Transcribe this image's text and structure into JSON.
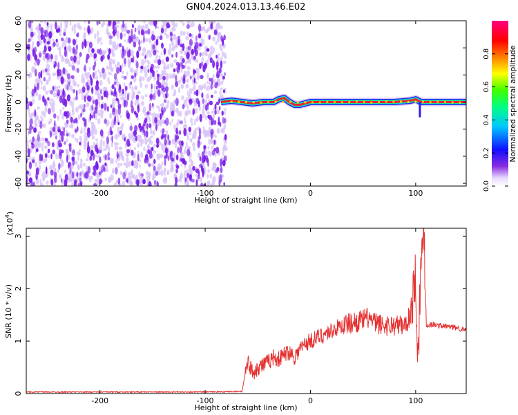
{
  "figure_title": "GN04.2024.013.13.46.E02",
  "colors": {
    "snr_line": "#e53030",
    "ridge_core": "#e8233a",
    "noise_purple": "#7a1ee8",
    "noise_light": "#d8c4f8",
    "frame": "#000000"
  },
  "chart_data": [
    {
      "type": "heatmap",
      "xlabel": "Height of straight line (km)",
      "ylabel": "Frequency (Hz)",
      "xlim": [
        -270,
        148
      ],
      "ylim": [
        -62,
        60
      ],
      "x_ticks": [
        -200,
        -100,
        0,
        100
      ],
      "x_tick_labels": [
        "-200",
        "-100",
        "0",
        "100"
      ],
      "y_ticks": [
        -60,
        -40,
        -20,
        0,
        20,
        40,
        60
      ],
      "y_tick_labels": [
        "-60",
        "-40",
        "-20",
        "0",
        "20",
        "40",
        "60"
      ],
      "grid": false,
      "noise_region_x": [
        -270,
        -80
      ],
      "ridge_frequency_hz": 0,
      "ridge": {
        "x": [
          -85,
          -75,
          -65,
          -55,
          -45,
          -35,
          -30,
          -25,
          -20,
          -15,
          -10,
          0,
          20,
          40,
          60,
          80,
          95,
          100,
          105,
          120,
          148
        ],
        "frequency": [
          0,
          1,
          0,
          -1,
          0,
          0,
          2,
          3,
          0,
          -2,
          -2,
          0,
          0,
          0,
          0,
          0,
          1,
          2,
          0,
          0,
          0
        ]
      },
      "colorbar": {
        "label": "Normalized spectral amplitude",
        "range": [
          0,
          1
        ],
        "ticks": [
          0.0,
          0.2,
          0.4,
          0.6,
          0.8
        ],
        "tick_labels": [
          "0.0",
          "0.2",
          "0.4",
          "0.6",
          "0.8"
        ],
        "colormap": "rainbow-white-purple-blue-cyan-green-yellow-orange-red-magenta"
      }
    },
    {
      "type": "line",
      "xlabel": "Height of straight line (km)",
      "ylabel": "SNR (10 * v/v)",
      "y_scale_label": "(x10",
      "y_scale_exponent": "4",
      "y_scale_close": ")",
      "xlim": [
        -270,
        148
      ],
      "ylim": [
        0,
        3.15
      ],
      "x_ticks": [
        -200,
        -100,
        0,
        100
      ],
      "x_tick_labels": [
        "-200",
        "-100",
        "0",
        "100"
      ],
      "y_ticks": [
        0,
        1,
        2,
        3
      ],
      "y_tick_labels": [
        "0",
        "1",
        "2",
        "3"
      ],
      "grid": false,
      "series": [
        {
          "x": [
            -270,
            -200,
            -100,
            -65,
            -60,
            -58,
            -55,
            -50,
            -45,
            -40,
            -35,
            -30,
            -25,
            -20,
            -15,
            -10,
            -5,
            0,
            10,
            20,
            30,
            40,
            50,
            55,
            60,
            70,
            80,
            90,
            95,
            100,
            102,
            105,
            108,
            110,
            115,
            120,
            130,
            140,
            148
          ],
          "values": [
            0.03,
            0.03,
            0.03,
            0.04,
            0.6,
            0.55,
            0.4,
            0.5,
            0.55,
            0.6,
            0.7,
            0.65,
            0.75,
            0.8,
            0.7,
            0.85,
            0.95,
            1.0,
            1.1,
            1.2,
            1.3,
            1.35,
            1.4,
            1.45,
            1.35,
            1.3,
            1.3,
            1.3,
            1.5,
            2.3,
            0.6,
            2.4,
            3.15,
            1.3,
            1.32,
            1.3,
            1.28,
            1.25,
            1.2
          ]
        }
      ]
    }
  ]
}
